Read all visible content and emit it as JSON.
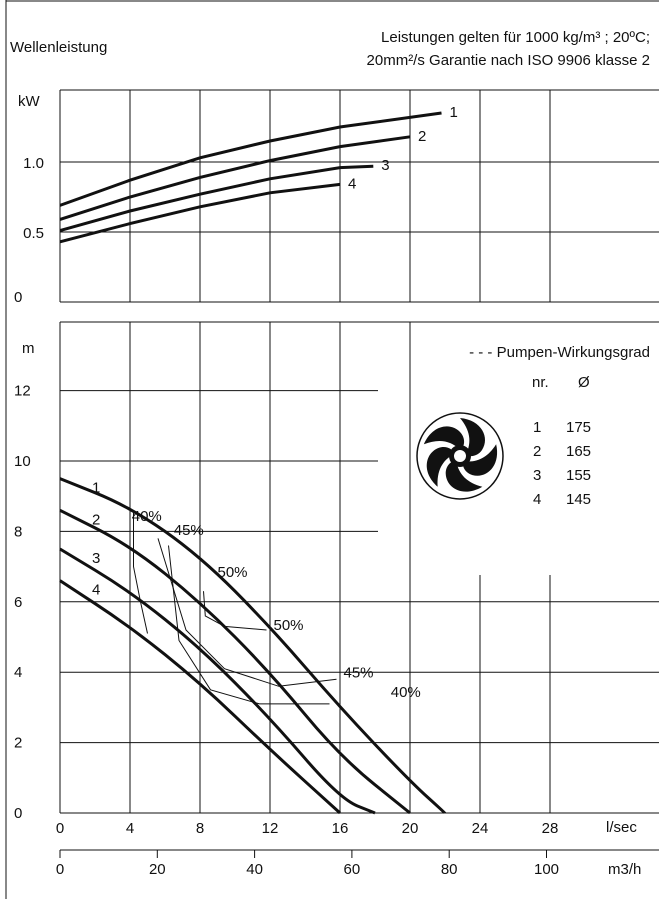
{
  "header": {
    "left_title": "Wellenleistung",
    "note_line1": "Leistungen gelten für 1000 kg/m³ ; 20ºC;",
    "note_line2": "20mm²/s Garantie nach ISO 9906 klasse 2"
  },
  "legend": {
    "efficiency_label": "- - - Pumpen-Wirkungsgrad",
    "col_nr": "nr.",
    "col_dia": "Ø",
    "rows": [
      {
        "nr": "1",
        "dia": "175"
      },
      {
        "nr": "2",
        "dia": "165"
      },
      {
        "nr": "3",
        "dia": "155"
      },
      {
        "nr": "4",
        "dia": "145"
      }
    ]
  },
  "icons": {
    "impeller": "impeller-icon"
  },
  "chart_data": [
    {
      "type": "line",
      "title": "Wellenleistung",
      "ylabel": "kW",
      "xlabel": "l/sec",
      "ylim": [
        0,
        1.3
      ],
      "xlim": [
        0,
        32
      ],
      "y_ticks": [
        "0",
        "0.5",
        "1.0"
      ],
      "grid": true,
      "series": [
        {
          "name": "1",
          "x": [
            0,
            4,
            8,
            12,
            16,
            21.8
          ],
          "y": [
            0.69,
            0.87,
            1.03,
            1.15,
            1.25,
            1.35
          ]
        },
        {
          "name": "2",
          "x": [
            0,
            4,
            8,
            12,
            16,
            20
          ],
          "y": [
            0.59,
            0.75,
            0.89,
            1.01,
            1.11,
            1.18
          ]
        },
        {
          "name": "3",
          "x": [
            0,
            4,
            8,
            12,
            16,
            17.9
          ],
          "y": [
            0.51,
            0.65,
            0.77,
            0.88,
            0.96,
            0.97
          ]
        },
        {
          "name": "4",
          "x": [
            0,
            4,
            8,
            12,
            16
          ],
          "y": [
            0.43,
            0.56,
            0.68,
            0.78,
            0.84
          ]
        }
      ],
      "line_labels": [
        "1",
        "2",
        "3",
        "4"
      ]
    },
    {
      "type": "line",
      "title": "",
      "ylabel": "m",
      "xlabel": "l/sec",
      "x2label": "m3/h",
      "ylim": [
        0,
        14
      ],
      "xlim": [
        0,
        32
      ],
      "y_ticks": [
        "0",
        "2",
        "4",
        "6",
        "8",
        "10",
        "12"
      ],
      "x_ticks": [
        "0",
        "4",
        "8",
        "12",
        "16",
        "20",
        "24",
        "28"
      ],
      "x2_ticks": [
        "0",
        "20",
        "40",
        "60",
        "80",
        "100"
      ],
      "grid": true,
      "series": [
        {
          "name": "1",
          "x": [
            0,
            4,
            8,
            12,
            16,
            20,
            22
          ],
          "y": [
            9.5,
            8.7,
            7.3,
            5.3,
            3.0,
            0.9,
            0.0
          ]
        },
        {
          "name": "2",
          "x": [
            0,
            4,
            8,
            12,
            16,
            20
          ],
          "y": [
            8.6,
            7.6,
            6.0,
            4.0,
            1.6,
            0.0
          ]
        },
        {
          "name": "3",
          "x": [
            0,
            4,
            8,
            12,
            16,
            18
          ],
          "y": [
            7.5,
            6.3,
            4.7,
            2.7,
            0.4,
            0.0
          ]
        },
        {
          "name": "4",
          "x": [
            0,
            4,
            8,
            12,
            16
          ],
          "y": [
            6.6,
            5.3,
            3.7,
            1.8,
            0.0
          ]
        }
      ],
      "line_labels": [
        "1",
        "2",
        "3",
        "4"
      ],
      "efficiency_lines": [
        {
          "label": "40%",
          "x": [
            4.2,
            4.2,
            4.6,
            5.0
          ],
          "y": [
            8.6,
            7.0,
            6.0,
            5.1
          ]
        },
        {
          "label": "45%",
          "x": [
            5.6,
            7.2,
            9.4,
            12.5,
            15.8
          ],
          "y": [
            7.8,
            5.2,
            4.1,
            3.6,
            3.8
          ]
        },
        {
          "label": "50%",
          "x": [
            8.2,
            8.3,
            9.4,
            11.8
          ],
          "y": [
            6.3,
            5.6,
            5.3,
            5.2
          ]
        },
        {
          "label": "40%",
          "x": [
            6.2,
            6.8,
            8.6,
            11.4,
            15.4
          ],
          "y": [
            7.6,
            4.9,
            3.5,
            3.1,
            3.1
          ]
        }
      ],
      "efficiency_labels": [
        {
          "text": "40%",
          "x": 4.1,
          "y": 8.3
        },
        {
          "text": "45%",
          "x": 6.5,
          "y": 7.9
        },
        {
          "text": "50%",
          "x": 9.0,
          "y": 6.7
        },
        {
          "text": "50%",
          "x": 12.2,
          "y": 5.2
        },
        {
          "text": "45%",
          "x": 16.2,
          "y": 3.85
        },
        {
          "text": "40%",
          "x": 18.9,
          "y": 3.3
        }
      ]
    }
  ]
}
